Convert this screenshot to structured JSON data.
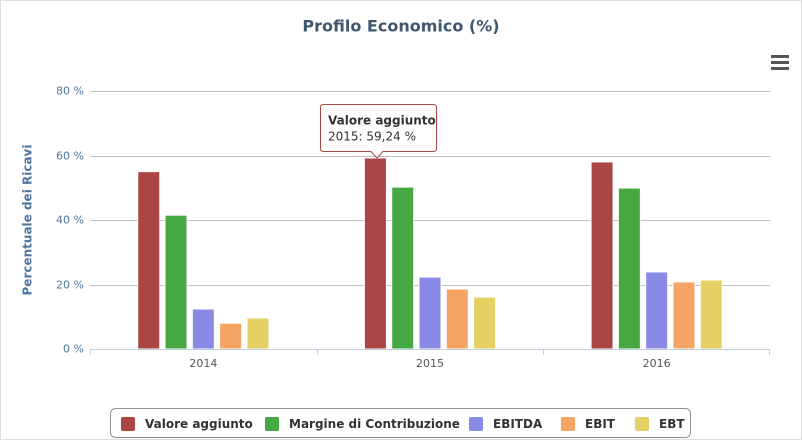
{
  "chart_data": {
    "type": "bar",
    "title": "Profilo Economico (%)",
    "y_axis_label": "Percentuale dei Ricavi",
    "categories": [
      "2014",
      "2015",
      "2016"
    ],
    "series": [
      {
        "name": "Valore aggiunto",
        "color": "#aa4643",
        "values": [
          55,
          59.24,
          58
        ]
      },
      {
        "name": "Margine di Contribuzione",
        "color": "#46a843",
        "values": [
          41.5,
          50.2,
          49.9
        ]
      },
      {
        "name": "EBITDA",
        "color": "#8a8ae6",
        "values": [
          12.4,
          22.3,
          23.9
        ]
      },
      {
        "name": "EBIT",
        "color": "#f4a464",
        "values": [
          8,
          18.6,
          20.8
        ]
      },
      {
        "name": "EBT",
        "color": "#e5d064",
        "values": [
          9.6,
          16.1,
          21.4
        ]
      }
    ],
    "ylim": [
      0,
      80
    ],
    "yticks": [
      {
        "value": 0,
        "label": "0 %"
      },
      {
        "value": 20,
        "label": "20 %"
      },
      {
        "value": 40,
        "label": "40 %"
      },
      {
        "value": 60,
        "label": "60 %"
      },
      {
        "value": 80,
        "label": "80 %"
      }
    ],
    "grid": true,
    "legend": "bottom",
    "tooltip": {
      "title": "Valore aggiunto",
      "text": "2015: 59,24 %"
    }
  }
}
